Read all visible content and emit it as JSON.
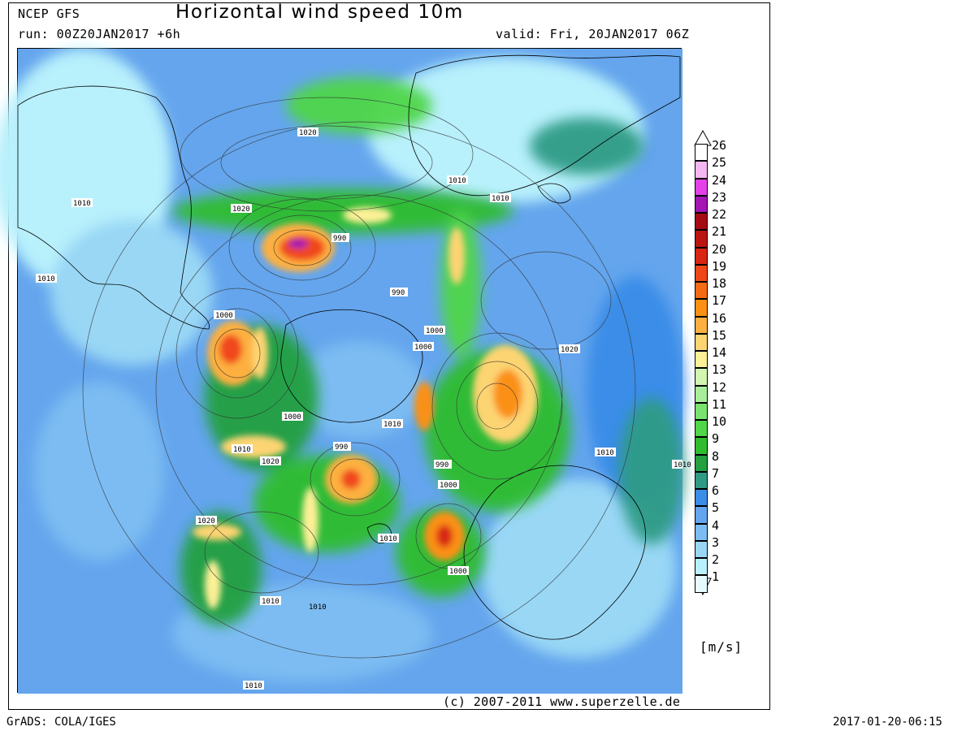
{
  "header": {
    "model": "NCEP GFS",
    "title": "Horizontal wind speed 10m",
    "run": "run: 00Z20JAN2017 +6h",
    "valid": "valid: Fri, 20JAN2017 06Z"
  },
  "footer": {
    "copyright": "(c) 2007-2011 www.superzelle.de",
    "software": "GrADS: COLA/IGES",
    "timestamp": "2017-01-20-06:15"
  },
  "legend": {
    "units": "[m/s]",
    "levels": [
      "1",
      "2",
      "3",
      "4",
      "5",
      "6",
      "7",
      "8",
      "9",
      "10",
      "11",
      "12",
      "13",
      "14",
      "15",
      "16",
      "17",
      "18",
      "19",
      "20",
      "21",
      "22",
      "23",
      "24",
      "25",
      "26"
    ],
    "colors": [
      "#e6fbff",
      "#b8f0fc",
      "#99d7f5",
      "#7cbcf2",
      "#64a5ed",
      "#3b8de8",
      "#2f9b86",
      "#24a040",
      "#2fbd2f",
      "#4fd64a",
      "#7ae36f",
      "#a8ee9a",
      "#d2f5b2",
      "#fdf096",
      "#fdd472",
      "#fdb040",
      "#fb9012",
      "#f66a16",
      "#f0471a",
      "#d82612",
      "#bb1512",
      "#a50b12",
      "#a316b4",
      "#e441e8",
      "#f3b6f3",
      "#ffffff"
    ]
  },
  "isobar_labels": [
    "1020",
    "1010",
    "1020",
    "990",
    "1010",
    "990",
    "1000",
    "1000",
    "1000",
    "1010",
    "1010",
    "1010",
    "1020",
    "1000",
    "1010",
    "1020",
    "990",
    "1010",
    "990",
    "1000",
    "1010",
    "1020",
    "1010",
    "1010",
    "1000",
    "1010",
    "1010"
  ],
  "colors": {
    "ocean": "#64a5ed",
    "land": "#b8f0fc",
    "background": "#ffffff"
  }
}
